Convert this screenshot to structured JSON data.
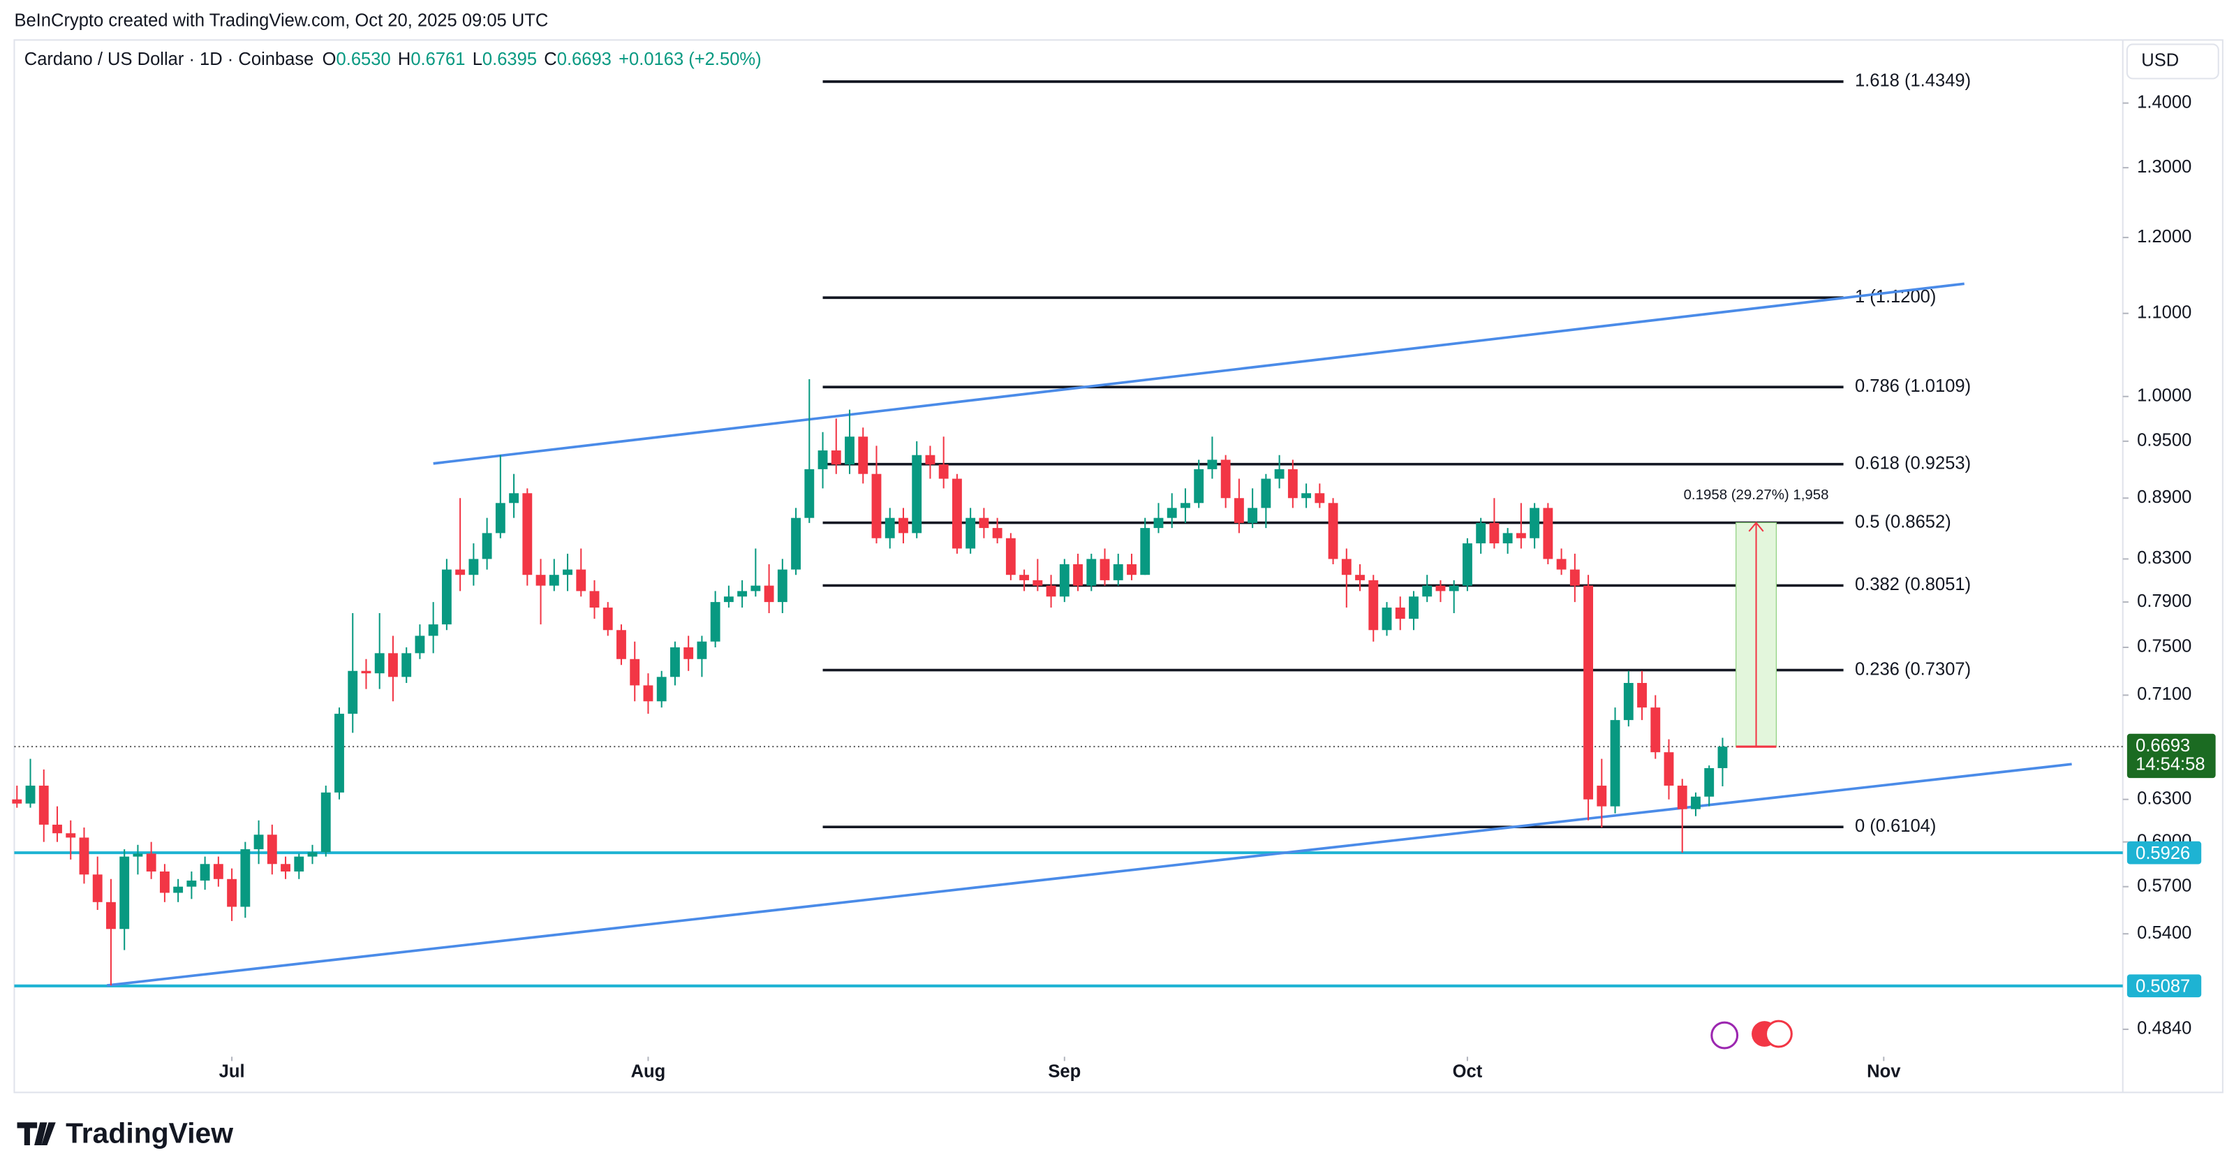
{
  "header": {
    "credit": "BeInCrypto created with TradingView.com, Oct 20, 2025 09:05 UTC",
    "symbol": "Cardano / US Dollar · 1D · Coinbase",
    "ohlc": [
      {
        "key": "O",
        "value": "0.6530"
      },
      {
        "key": "H",
        "value": "0.6761"
      },
      {
        "key": "L",
        "value": "0.6395"
      },
      {
        "key": "C",
        "value": "0.6693"
      }
    ],
    "change": "+0.0163 (+2.50%)",
    "currency": "USD"
  },
  "footer": {
    "brand": "TradingView"
  },
  "chart_data": {
    "type": "candlestick",
    "log_scale": true,
    "up_color": "#089981",
    "down_color": "#f23645",
    "xlim": [
      -0.2,
      156.8
    ],
    "ylim": [
      0.469,
      1.505
    ],
    "xticks": [
      {
        "value": 16,
        "label": "Jul"
      },
      {
        "value": 47,
        "label": "Aug"
      },
      {
        "value": 78,
        "label": "Sep"
      },
      {
        "value": 108,
        "label": "Oct"
      },
      {
        "value": 139,
        "label": "Nov"
      }
    ],
    "yticks": [
      {
        "value": 1.4,
        "label": "1.4000"
      },
      {
        "value": 1.3,
        "label": "1.3000"
      },
      {
        "value": 1.2,
        "label": "1.2000"
      },
      {
        "value": 1.1,
        "label": "1.1000"
      },
      {
        "value": 1.0,
        "label": "1.0000"
      },
      {
        "value": 0.95,
        "label": "0.9500"
      },
      {
        "value": 0.89,
        "label": "0.8900"
      },
      {
        "value": 0.83,
        "label": "0.8300"
      },
      {
        "value": 0.79,
        "label": "0.7900"
      },
      {
        "value": 0.75,
        "label": "0.7500"
      },
      {
        "value": 0.71,
        "label": "0.7100"
      },
      {
        "value": 0.63,
        "label": "0.6300"
      },
      {
        "value": 0.6,
        "label": "0.6000"
      },
      {
        "value": 0.57,
        "label": "0.5700"
      },
      {
        "value": 0.54,
        "label": "0.5400"
      },
      {
        "value": 0.484,
        "label": "0.4840"
      }
    ],
    "ohlc": [
      [
        0.63,
        0.64,
        0.624,
        0.627
      ],
      [
        0.627,
        0.66,
        0.624,
        0.64
      ],
      [
        0.64,
        0.652,
        0.6,
        0.612
      ],
      [
        0.612,
        0.625,
        0.6,
        0.606
      ],
      [
        0.606,
        0.615,
        0.588,
        0.603
      ],
      [
        0.603,
        0.61,
        0.572,
        0.578
      ],
      [
        0.578,
        0.59,
        0.555,
        0.56
      ],
      [
        0.56,
        0.575,
        0.509,
        0.543
      ],
      [
        0.543,
        0.595,
        0.53,
        0.59
      ],
      [
        0.59,
        0.598,
        0.578,
        0.592
      ],
      [
        0.592,
        0.6,
        0.575,
        0.58
      ],
      [
        0.58,
        0.585,
        0.56,
        0.566
      ],
      [
        0.566,
        0.575,
        0.56,
        0.57
      ],
      [
        0.57,
        0.58,
        0.562,
        0.574
      ],
      [
        0.574,
        0.59,
        0.568,
        0.585
      ],
      [
        0.585,
        0.59,
        0.57,
        0.575
      ],
      [
        0.575,
        0.582,
        0.548,
        0.557
      ],
      [
        0.557,
        0.6,
        0.55,
        0.595
      ],
      [
        0.595,
        0.615,
        0.585,
        0.605
      ],
      [
        0.605,
        0.612,
        0.578,
        0.585
      ],
      [
        0.585,
        0.59,
        0.575,
        0.58
      ],
      [
        0.58,
        0.592,
        0.575,
        0.59
      ],
      [
        0.59,
        0.598,
        0.585,
        0.593
      ],
      [
        0.593,
        0.64,
        0.59,
        0.635
      ],
      [
        0.635,
        0.7,
        0.63,
        0.695
      ],
      [
        0.695,
        0.78,
        0.68,
        0.73
      ],
      [
        0.73,
        0.74,
        0.715,
        0.728
      ],
      [
        0.728,
        0.78,
        0.715,
        0.745
      ],
      [
        0.745,
        0.76,
        0.705,
        0.725
      ],
      [
        0.725,
        0.75,
        0.72,
        0.745
      ],
      [
        0.745,
        0.77,
        0.74,
        0.76
      ],
      [
        0.76,
        0.79,
        0.745,
        0.77
      ],
      [
        0.77,
        0.83,
        0.765,
        0.82
      ],
      [
        0.82,
        0.89,
        0.8,
        0.815
      ],
      [
        0.815,
        0.845,
        0.805,
        0.83
      ],
      [
        0.83,
        0.87,
        0.82,
        0.855
      ],
      [
        0.855,
        0.935,
        0.85,
        0.885
      ],
      [
        0.885,
        0.915,
        0.87,
        0.895
      ],
      [
        0.895,
        0.9,
        0.805,
        0.815
      ],
      [
        0.815,
        0.83,
        0.77,
        0.805
      ],
      [
        0.805,
        0.83,
        0.8,
        0.815
      ],
      [
        0.815,
        0.835,
        0.8,
        0.82
      ],
      [
        0.82,
        0.84,
        0.795,
        0.8
      ],
      [
        0.8,
        0.81,
        0.775,
        0.785
      ],
      [
        0.785,
        0.79,
        0.76,
        0.765
      ],
      [
        0.765,
        0.77,
        0.735,
        0.74
      ],
      [
        0.74,
        0.755,
        0.705,
        0.718
      ],
      [
        0.718,
        0.728,
        0.695,
        0.705
      ],
      [
        0.705,
        0.73,
        0.7,
        0.725
      ],
      [
        0.725,
        0.755,
        0.718,
        0.75
      ],
      [
        0.75,
        0.76,
        0.73,
        0.74
      ],
      [
        0.74,
        0.76,
        0.725,
        0.755
      ],
      [
        0.755,
        0.8,
        0.75,
        0.79
      ],
      [
        0.79,
        0.805,
        0.785,
        0.795
      ],
      [
        0.795,
        0.81,
        0.785,
        0.8
      ],
      [
        0.8,
        0.84,
        0.795,
        0.805
      ],
      [
        0.805,
        0.825,
        0.78,
        0.79
      ],
      [
        0.79,
        0.83,
        0.78,
        0.82
      ],
      [
        0.82,
        0.88,
        0.815,
        0.87
      ],
      [
        0.87,
        1.02,
        0.865,
        0.92
      ],
      [
        0.92,
        0.96,
        0.9,
        0.94
      ],
      [
        0.94,
        0.975,
        0.915,
        0.925
      ],
      [
        0.925,
        0.985,
        0.915,
        0.955
      ],
      [
        0.955,
        0.965,
        0.905,
        0.915
      ],
      [
        0.915,
        0.945,
        0.845,
        0.85
      ],
      [
        0.85,
        0.88,
        0.84,
        0.87
      ],
      [
        0.87,
        0.88,
        0.845,
        0.855
      ],
      [
        0.855,
        0.95,
        0.85,
        0.935
      ],
      [
        0.935,
        0.945,
        0.91,
        0.925
      ],
      [
        0.925,
        0.955,
        0.9,
        0.91
      ],
      [
        0.91,
        0.915,
        0.835,
        0.84
      ],
      [
        0.84,
        0.88,
        0.835,
        0.87
      ],
      [
        0.87,
        0.88,
        0.85,
        0.86
      ],
      [
        0.86,
        0.87,
        0.845,
        0.85
      ],
      [
        0.85,
        0.855,
        0.81,
        0.815
      ],
      [
        0.815,
        0.82,
        0.8,
        0.81
      ],
      [
        0.81,
        0.83,
        0.8,
        0.805
      ],
      [
        0.805,
        0.815,
        0.785,
        0.795
      ],
      [
        0.795,
        0.83,
        0.79,
        0.825
      ],
      [
        0.825,
        0.835,
        0.8,
        0.805
      ],
      [
        0.805,
        0.835,
        0.8,
        0.83
      ],
      [
        0.83,
        0.84,
        0.805,
        0.81
      ],
      [
        0.81,
        0.835,
        0.805,
        0.825
      ],
      [
        0.825,
        0.835,
        0.81,
        0.815
      ],
      [
        0.815,
        0.87,
        0.815,
        0.86
      ],
      [
        0.86,
        0.885,
        0.855,
        0.87
      ],
      [
        0.87,
        0.895,
        0.86,
        0.88
      ],
      [
        0.88,
        0.9,
        0.865,
        0.885
      ],
      [
        0.885,
        0.93,
        0.88,
        0.92
      ],
      [
        0.92,
        0.955,
        0.91,
        0.93
      ],
      [
        0.93,
        0.935,
        0.88,
        0.89
      ],
      [
        0.89,
        0.91,
        0.855,
        0.865
      ],
      [
        0.865,
        0.9,
        0.86,
        0.88
      ],
      [
        0.88,
        0.915,
        0.86,
        0.91
      ],
      [
        0.91,
        0.935,
        0.9,
        0.92
      ],
      [
        0.92,
        0.93,
        0.88,
        0.89
      ],
      [
        0.89,
        0.905,
        0.88,
        0.895
      ],
      [
        0.895,
        0.905,
        0.88,
        0.885
      ],
      [
        0.885,
        0.89,
        0.825,
        0.83
      ],
      [
        0.83,
        0.84,
        0.785,
        0.815
      ],
      [
        0.815,
        0.825,
        0.8,
        0.81
      ],
      [
        0.81,
        0.815,
        0.755,
        0.765
      ],
      [
        0.765,
        0.79,
        0.76,
        0.785
      ],
      [
        0.785,
        0.795,
        0.765,
        0.775
      ],
      [
        0.775,
        0.8,
        0.765,
        0.795
      ],
      [
        0.795,
        0.815,
        0.79,
        0.805
      ],
      [
        0.805,
        0.81,
        0.79,
        0.8
      ],
      [
        0.8,
        0.81,
        0.78,
        0.805
      ],
      [
        0.805,
        0.85,
        0.8,
        0.845
      ],
      [
        0.845,
        0.87,
        0.835,
        0.865
      ],
      [
        0.865,
        0.89,
        0.84,
        0.845
      ],
      [
        0.845,
        0.86,
        0.835,
        0.855
      ],
      [
        0.855,
        0.885,
        0.84,
        0.85
      ],
      [
        0.85,
        0.885,
        0.84,
        0.88
      ],
      [
        0.88,
        0.885,
        0.825,
        0.83
      ],
      [
        0.83,
        0.84,
        0.815,
        0.82
      ],
      [
        0.82,
        0.835,
        0.79,
        0.805
      ],
      [
        0.805,
        0.815,
        0.615,
        0.63
      ],
      [
        0.64,
        0.66,
        0.61,
        0.625
      ],
      [
        0.625,
        0.7,
        0.62,
        0.69
      ],
      [
        0.69,
        0.73,
        0.685,
        0.72
      ],
      [
        0.72,
        0.73,
        0.69,
        0.7
      ],
      [
        0.7,
        0.71,
        0.66,
        0.665
      ],
      [
        0.665,
        0.675,
        0.63,
        0.64
      ],
      [
        0.64,
        0.645,
        0.5926,
        0.623
      ],
      [
        0.623,
        0.635,
        0.618,
        0.632
      ],
      [
        0.632,
        0.655,
        0.625,
        0.653
      ],
      [
        0.653,
        0.6761,
        0.6395,
        0.6693
      ]
    ],
    "fib_range": [
      60,
      136
    ],
    "fib_levels": [
      {
        "value": 1.4349,
        "label": "1.618 (1.4349)"
      },
      {
        "value": 1.12,
        "label": "1 (1.1200)"
      },
      {
        "value": 1.0109,
        "label": "0.786 (1.0109)"
      },
      {
        "value": 0.9253,
        "label": "0.618 (0.9253)"
      },
      {
        "value": 0.8652,
        "label": "0.5 (0.8652)"
      },
      {
        "value": 0.8051,
        "label": "0.382 (0.8051)"
      },
      {
        "value": 0.7307,
        "label": "0.236 (0.7307)"
      },
      {
        "value": 0.6104,
        "label": "0 (0.6104)"
      }
    ],
    "trendlines": [
      {
        "color": "#4a8be8",
        "x": [
          31,
          145
        ],
        "values": [
          0.926,
          1.138
        ]
      },
      {
        "color": "#4a8be8",
        "x": [
          6.7,
          153
        ],
        "values": [
          0.509,
          0.656
        ]
      }
    ],
    "hlines": [
      {
        "value": 0.5926,
        "label": "0.5926",
        "color": "#1eb3d3"
      },
      {
        "value": 0.5087,
        "label": "0.5087",
        "color": "#1eb3d3"
      }
    ],
    "last_price": {
      "value": 0.6693,
      "label": "0.6693",
      "countdown": "14:54:58",
      "color": "#1b6b22"
    },
    "measure": {
      "x": [
        128,
        131
      ],
      "from": 0.6693,
      "to": 0.8652,
      "label": "0.1958 (29.27%) 1,958"
    }
  }
}
